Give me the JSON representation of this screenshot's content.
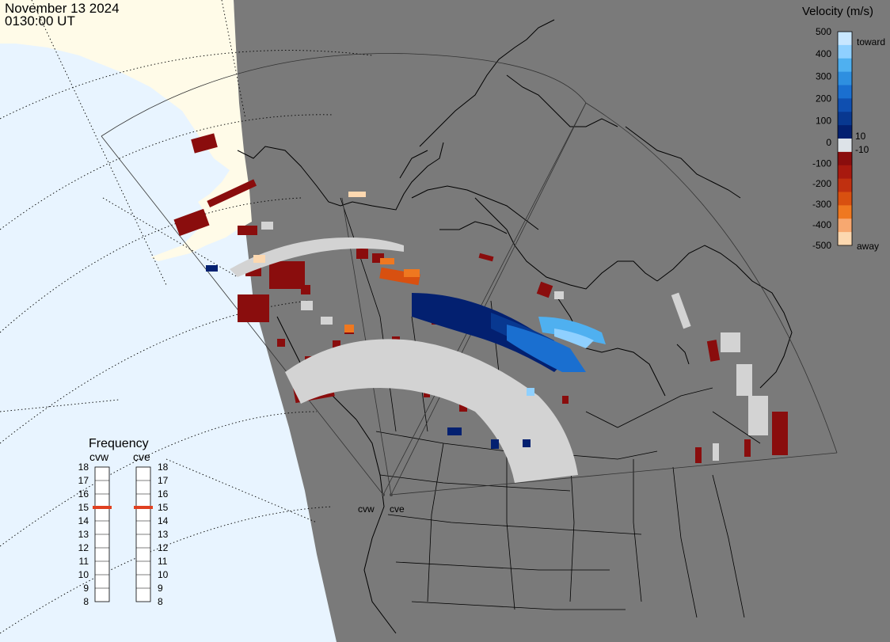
{
  "header": {
    "date": "November 13 2024",
    "time": "0130:00 UT"
  },
  "velocity_scale": {
    "title": "Velocity (m/s)",
    "ticks": [
      {
        "value": 500,
        "label": "500"
      },
      {
        "value": 400,
        "label": "400"
      },
      {
        "value": 300,
        "label": "300"
      },
      {
        "value": 200,
        "label": "200"
      },
      {
        "value": 100,
        "label": "100"
      },
      {
        "value": 10,
        "label": "10"
      },
      {
        "value": 0,
        "label": "0"
      },
      {
        "value": -10,
        "label": "-10"
      },
      {
        "value": -100,
        "label": "-100"
      },
      {
        "value": -200,
        "label": "-200"
      },
      {
        "value": -300,
        "label": "-300"
      },
      {
        "value": -400,
        "label": "-400"
      },
      {
        "value": -500,
        "label": "-500"
      }
    ],
    "toward_label": "toward",
    "away_label": "away",
    "colors": [
      "#c8e6ff",
      "#8fd0ff",
      "#4fb0f0",
      "#2e8fe0",
      "#1a6fd0",
      "#0f4fb0",
      "#083890",
      "#032070",
      "#dde3e8",
      "#8a0d0d",
      "#a8190f",
      "#c03010",
      "#d85010",
      "#ef7820",
      "#f7a870",
      "#fcd8b0"
    ]
  },
  "frequency": {
    "title": "Frequency",
    "radars": [
      {
        "name": "cvw",
        "frequency": 15
      },
      {
        "name": "cve",
        "frequency": 15
      }
    ],
    "ticks": [
      {
        "value": 18,
        "label": "18"
      },
      {
        "value": 17,
        "label": "17"
      },
      {
        "value": 16,
        "label": "16"
      },
      {
        "value": 15,
        "label": "15"
      },
      {
        "value": 14,
        "label": "14"
      },
      {
        "value": 13,
        "label": "13"
      },
      {
        "value": 12,
        "label": "12"
      },
      {
        "value": 11,
        "label": "11"
      },
      {
        "value": 10,
        "label": "10"
      },
      {
        "value": 9,
        "label": "9"
      },
      {
        "value": 8,
        "label": "8"
      }
    ],
    "marker_color": "#e04020"
  },
  "map": {
    "ocean_color": "#e8f4ff",
    "land_color": "#7a7a7a",
    "alaska_color": "#fffbe8",
    "sites": [
      {
        "name": "cvw",
        "label": "cvw"
      },
      {
        "name": "cve",
        "label": "cve"
      }
    ]
  }
}
